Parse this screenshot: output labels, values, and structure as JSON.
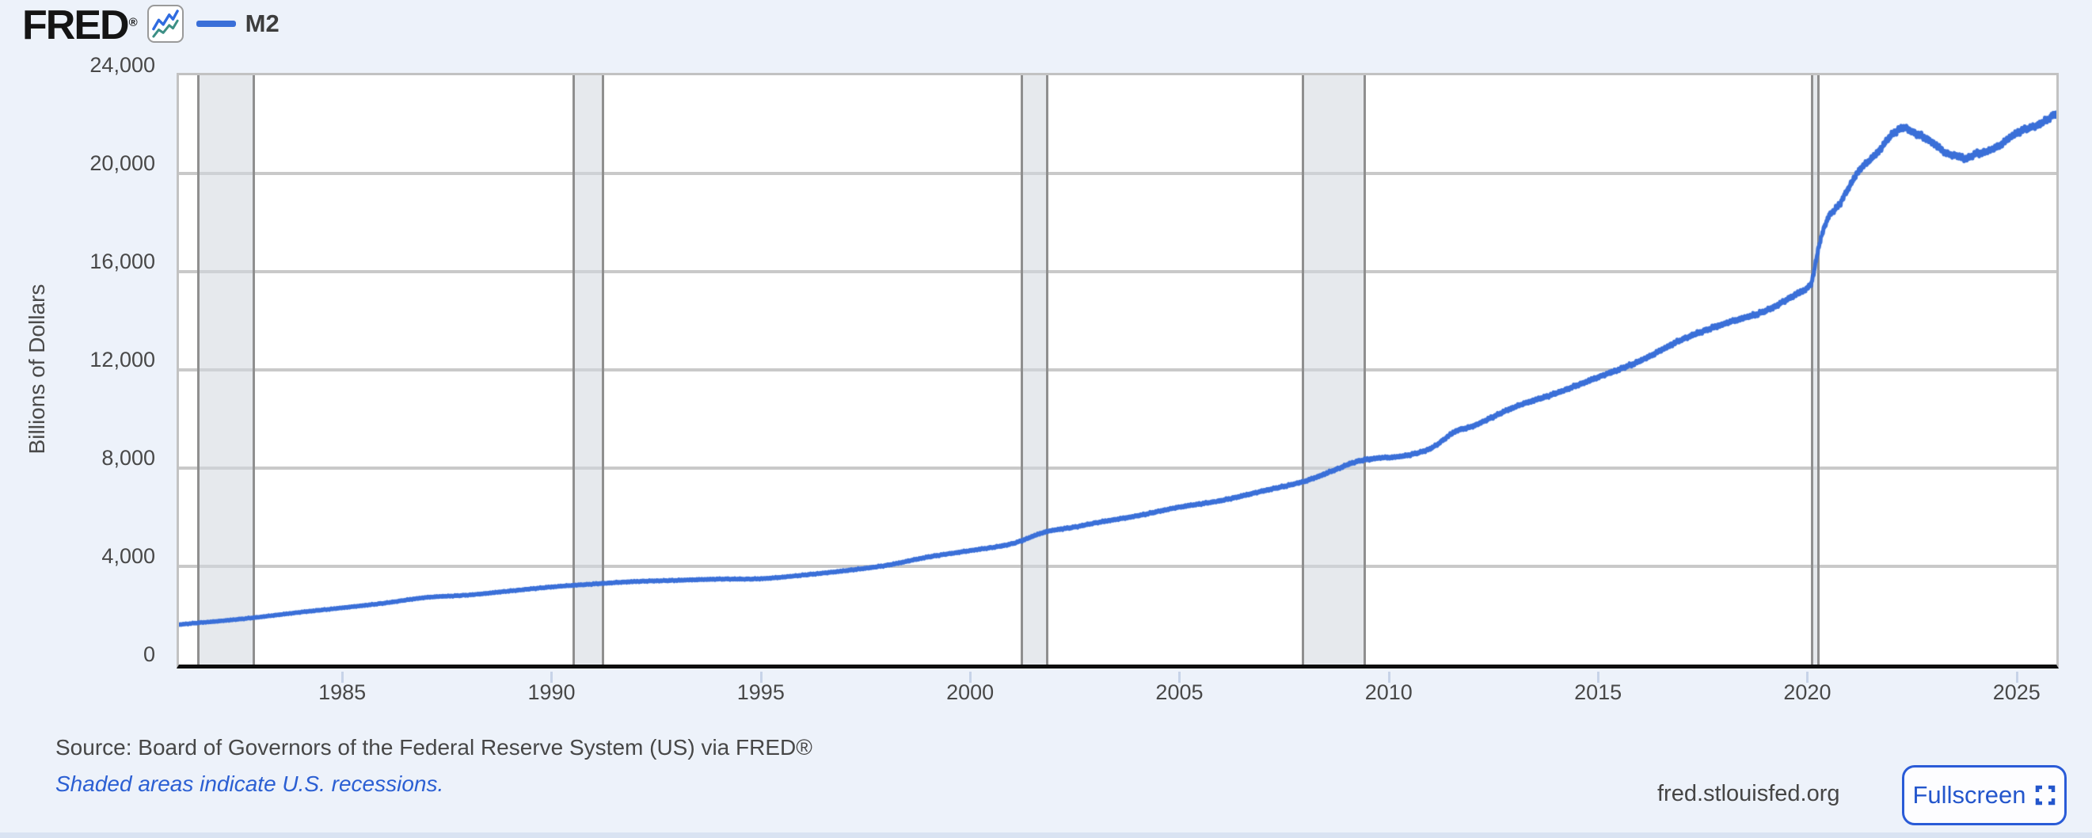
{
  "header": {
    "logo_text": "FRED",
    "logo_reg_mark": "®",
    "legend": {
      "label": "M2",
      "swatch_color": "#3a6fd8"
    }
  },
  "chart_data": {
    "type": "line",
    "title": "",
    "ylabel": "Billions of Dollars",
    "ylim": [
      0,
      24000
    ],
    "ytick_step": 4000,
    "yticks": [
      {
        "value": 0,
        "label": "0"
      },
      {
        "value": 4000,
        "label": "4,000"
      },
      {
        "value": 8000,
        "label": "8,000"
      },
      {
        "value": 12000,
        "label": "12,000"
      },
      {
        "value": 16000,
        "label": "16,000"
      },
      {
        "value": 20000,
        "label": "20,000"
      },
      {
        "value": 24000,
        "label": "24,000"
      }
    ],
    "xlim": [
      1981.1,
      2025.95
    ],
    "xticks": [
      {
        "value": 1985,
        "label": "1985"
      },
      {
        "value": 1990,
        "label": "1990"
      },
      {
        "value": 1995,
        "label": "1995"
      },
      {
        "value": 2000,
        "label": "2000"
      },
      {
        "value": 2005,
        "label": "2005"
      },
      {
        "value": 2010,
        "label": "2010"
      },
      {
        "value": 2015,
        "label": "2015"
      },
      {
        "value": 2020,
        "label": "2020"
      },
      {
        "value": 2025,
        "label": "2025"
      }
    ],
    "grid": "horizontal",
    "legend_position": "top-left",
    "recession_shading_color": "#e4e7ea",
    "recessions": [
      [
        1981.54,
        1982.92
      ],
      [
        1990.5,
        1991.25
      ],
      [
        2001.21,
        2001.87
      ],
      [
        2007.92,
        2009.45
      ],
      [
        2020.08,
        2020.29
      ]
    ],
    "series": [
      {
        "name": "M2",
        "color": "#3a6fd8",
        "units": "Billions of Dollars",
        "points": [
          [
            1980.95,
            1600
          ],
          [
            1981.5,
            1690
          ],
          [
            1982.0,
            1760
          ],
          [
            1982.9,
            1910
          ],
          [
            1984.0,
            2130
          ],
          [
            1985.0,
            2310
          ],
          [
            1986.0,
            2500
          ],
          [
            1987.0,
            2730
          ],
          [
            1988.0,
            2830
          ],
          [
            1989.0,
            2995
          ],
          [
            1990.0,
            3160
          ],
          [
            1991.0,
            3280
          ],
          [
            1992.0,
            3380
          ],
          [
            1993.0,
            3430
          ],
          [
            1994.0,
            3480
          ],
          [
            1995.0,
            3495
          ],
          [
            1996.0,
            3640
          ],
          [
            1997.0,
            3820
          ],
          [
            1998.0,
            4040
          ],
          [
            1999.0,
            4380
          ],
          [
            2000.0,
            4640
          ],
          [
            2001.0,
            4920
          ],
          [
            2001.8,
            5400
          ],
          [
            2002.5,
            5600
          ],
          [
            2003.0,
            5770
          ],
          [
            2004.0,
            6060
          ],
          [
            2005.0,
            6410
          ],
          [
            2006.0,
            6680
          ],
          [
            2007.0,
            7070
          ],
          [
            2008.0,
            7470
          ],
          [
            2008.75,
            7950
          ],
          [
            2009.2,
            8250
          ],
          [
            2009.7,
            8400
          ],
          [
            2010.3,
            8480
          ],
          [
            2011.0,
            8800
          ],
          [
            2011.6,
            9500
          ],
          [
            2012.0,
            9700
          ],
          [
            2013.0,
            10480
          ],
          [
            2014.0,
            11050
          ],
          [
            2015.0,
            11700
          ],
          [
            2016.0,
            12360
          ],
          [
            2017.0,
            13230
          ],
          [
            2018.0,
            13870
          ],
          [
            2019.0,
            14400
          ],
          [
            2019.7,
            15050
          ],
          [
            2020.08,
            15480
          ],
          [
            2020.17,
            16100
          ],
          [
            2020.3,
            17200
          ],
          [
            2020.5,
            18200
          ],
          [
            2020.75,
            18700
          ],
          [
            2021.0,
            19450
          ],
          [
            2021.25,
            20150
          ],
          [
            2021.5,
            20550
          ],
          [
            2021.75,
            21000
          ],
          [
            2022.0,
            21550
          ],
          [
            2022.3,
            21860
          ],
          [
            2022.5,
            21700
          ],
          [
            2022.75,
            21500
          ],
          [
            2023.0,
            21250
          ],
          [
            2023.3,
            20850
          ],
          [
            2023.6,
            20700
          ],
          [
            2023.82,
            20620
          ],
          [
            2024.0,
            20780
          ],
          [
            2024.3,
            20900
          ],
          [
            2024.6,
            21150
          ],
          [
            2025.0,
            21650
          ],
          [
            2025.3,
            21850
          ],
          [
            2025.6,
            22050
          ],
          [
            2025.95,
            22460
          ]
        ]
      }
    ]
  },
  "footer": {
    "source_line": "Source: Board of Governors of the Federal Reserve System (US) via FRED®",
    "recession_note": "Shaded areas indicate U.S. recessions.",
    "site": "fred.stlouisfed.org",
    "fullscreen_label": "Fullscreen"
  }
}
